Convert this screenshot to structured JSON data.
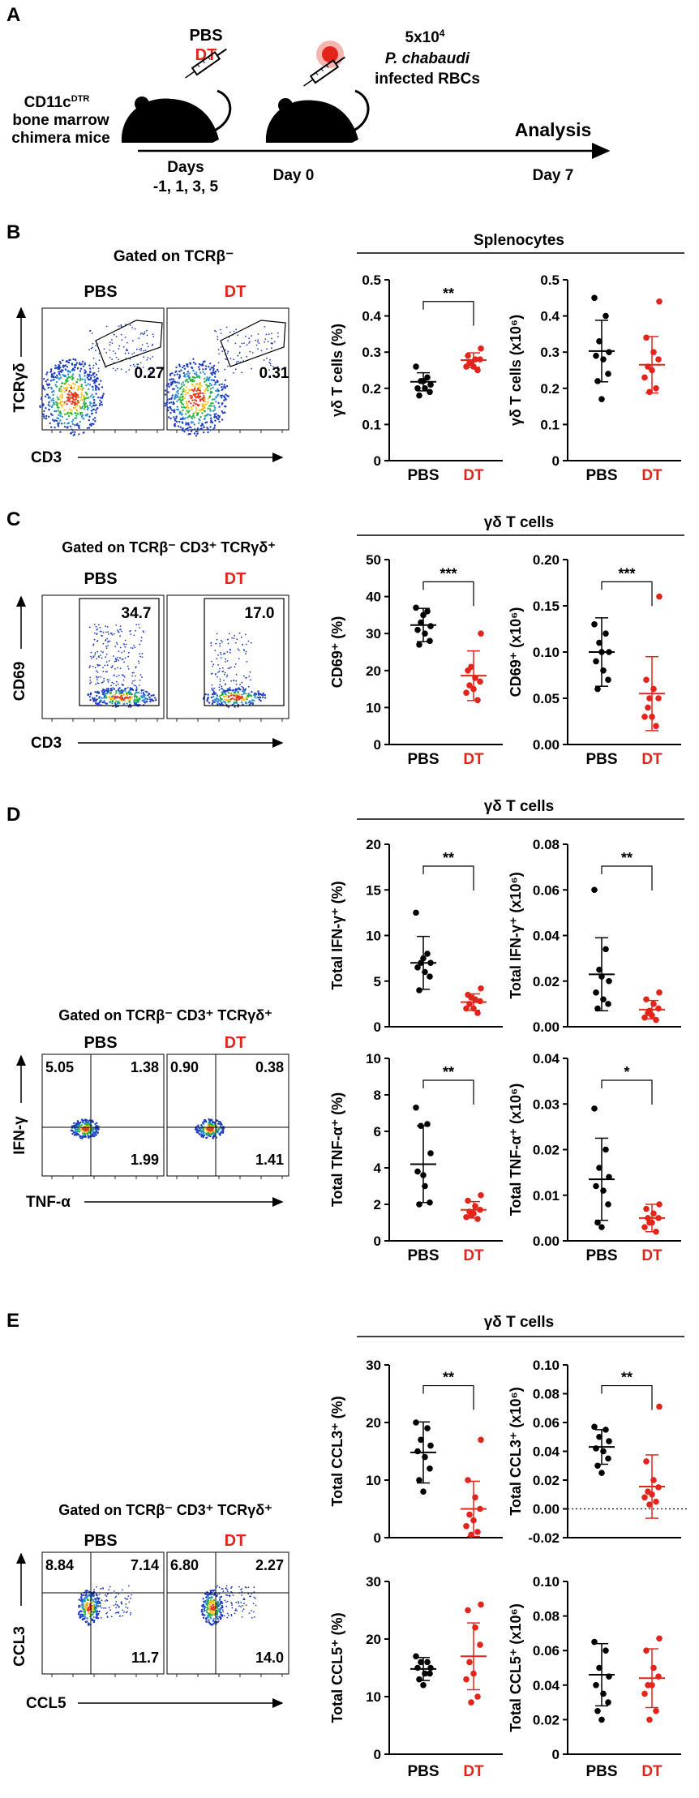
{
  "colors": {
    "pbs": "#000000",
    "dt": "#e3241b",
    "axis": "#000000"
  },
  "panel_a": {
    "label": "A",
    "mouse_label": [
      "CD11c",
      "DTR",
      "bone marrow",
      "chimera mice"
    ],
    "treatment": {
      "pbs": "PBS",
      "dt": "DT"
    },
    "infection": {
      "dose": "5x10",
      "dose_exp": "4",
      "species": "P. chabaudi",
      "cells": "infected RBCs"
    },
    "days_label": [
      "Days",
      "-1, 1, 3, 5"
    ],
    "day0": "Day 0",
    "analysis": "Analysis",
    "day7": "Day 7"
  },
  "panel_b": {
    "label": "B",
    "gate": "Gated on TCRβ⁻",
    "ylab": "TCRγδ",
    "xlab": "CD3",
    "pbs": "PBS",
    "dt": "DT",
    "pct": [
      "0.27",
      "0.31"
    ],
    "group": "Splenocytes"
  },
  "panel_c": {
    "label": "C",
    "gate": "Gated on TCRβ⁻ CD3⁺ TCRγδ⁺",
    "ylab": "CD69",
    "xlab": "CD3",
    "pbs": "PBS",
    "dt": "DT",
    "pct": [
      "34.7",
      "17.0"
    ],
    "group": "γδ T cells"
  },
  "panel_d": {
    "label": "D",
    "gate": "Gated on TCRβ⁻ CD3⁺ TCRγδ⁺",
    "ylab": "IFN-γ",
    "xlab": "TNF-α",
    "pbs": "PBS",
    "dt": "DT",
    "quads_pbs": [
      "5.05",
      "1.38",
      "1.99"
    ],
    "quads_dt": [
      "0.90",
      "0.38",
      "1.41"
    ],
    "group": "γδ T cells"
  },
  "panel_e": {
    "label": "E",
    "gate": "Gated on TCRβ⁻ CD3⁺ TCRγδ⁺",
    "ylab": "CCL3",
    "xlab": "CCL5",
    "pbs": "PBS",
    "dt": "DT",
    "quads_pbs": [
      "8.84",
      "7.14",
      "11.7"
    ],
    "quads_dt": [
      "6.80",
      "2.27",
      "14.0"
    ],
    "group": "γδ T cells"
  },
  "chart_data": [
    {
      "id": "b1",
      "type": "scatter",
      "ylabel": "γδ T cells (%)",
      "ylim": [
        0,
        0.5
      ],
      "ticks": [
        "0",
        "0.1",
        "0.2",
        "0.3",
        "0.4",
        "0.5"
      ],
      "categories": [
        "PBS",
        "DT"
      ],
      "sig": "**",
      "pbs": [
        0.26,
        0.23,
        0.22,
        0.21,
        0.2,
        0.2,
        0.19,
        0.18,
        0.22
      ],
      "dt": [
        0.31,
        0.29,
        0.28,
        0.28,
        0.27,
        0.26,
        0.26,
        0.25,
        0.27
      ],
      "summary_pbs": {
        "mean": 0.218,
        "sd": 0.025
      },
      "summary_dt": {
        "mean": 0.278,
        "sd": 0.02
      }
    },
    {
      "id": "b2",
      "type": "scatter",
      "ylabel": "γδ T cells (x10⁶)",
      "ylim": [
        0,
        0.5
      ],
      "ticks": [
        "0",
        "0.1",
        "0.2",
        "0.3",
        "0.4",
        "0.5"
      ],
      "categories": [
        "PBS",
        "DT"
      ],
      "sig": "",
      "pbs": [
        0.45,
        0.4,
        0.33,
        0.3,
        0.29,
        0.28,
        0.24,
        0.22,
        0.17
      ],
      "dt": [
        0.44,
        0.34,
        0.3,
        0.28,
        0.26,
        0.25,
        0.23,
        0.2,
        0.19
      ],
      "summary_pbs": {
        "mean": 0.303,
        "sd": 0.085
      },
      "summary_dt": {
        "mean": 0.265,
        "sd": 0.078
      }
    },
    {
      "id": "c1",
      "type": "scatter",
      "ylabel": "CD69⁺ (%)",
      "ylim": [
        0,
        50
      ],
      "ticks": [
        "0",
        "10",
        "20",
        "30",
        "40",
        "50"
      ],
      "categories": [
        "PBS",
        "DT"
      ],
      "sig": "***",
      "pbs": [
        37,
        36,
        33,
        32,
        31,
        30,
        28,
        27,
        35
      ],
      "dt": [
        30,
        20,
        18,
        17,
        16,
        15,
        14,
        12,
        21
      ],
      "summary_pbs": {
        "mean": 32.3,
        "sd": 4.5
      },
      "summary_dt": {
        "mean": 18.6,
        "sd": 6.7
      }
    },
    {
      "id": "c2",
      "type": "scatter",
      "ylabel": "CD69⁺ (x10⁶)",
      "ylim": [
        0,
        0.2
      ],
      "ticks": [
        "0.00",
        "0.05",
        "0.10",
        "0.15",
        "0.20"
      ],
      "categories": [
        "PBS",
        "DT"
      ],
      "sig": "***",
      "pbs": [
        0.13,
        0.12,
        0.11,
        0.1,
        0.09,
        0.08,
        0.07,
        0.06,
        0.1
      ],
      "dt": [
        0.16,
        0.07,
        0.06,
        0.05,
        0.04,
        0.03,
        0.03,
        0.02,
        0.05
      ],
      "summary_pbs": {
        "mean": 0.1,
        "sd": 0.037
      },
      "summary_dt": {
        "mean": 0.055,
        "sd": 0.04
      }
    },
    {
      "id": "d1",
      "type": "scatter",
      "ylabel": "Total IFN-γ⁺ (%)",
      "ylim": [
        0,
        20
      ],
      "ticks": [
        "0",
        "5",
        "10",
        "15",
        "20"
      ],
      "categories": [
        "PBS",
        "DT"
      ],
      "sig": "**",
      "pbs": [
        12.5,
        8,
        7,
        7,
        6.5,
        6,
        5.5,
        4,
        7.5
      ],
      "dt": [
        4.2,
        3.5,
        3,
        2.8,
        2.5,
        2,
        2,
        1.5,
        3.2
      ],
      "summary_pbs": {
        "mean": 7.0,
        "sd": 2.9
      },
      "summary_dt": {
        "mean": 2.7,
        "sd": 0.9
      }
    },
    {
      "id": "d2",
      "type": "scatter",
      "ylabel": "Total IFN-γ⁺ (x10⁶)",
      "ylim": [
        0,
        0.08
      ],
      "ticks": [
        "0.00",
        "0.02",
        "0.04",
        "0.06",
        "0.08"
      ],
      "categories": [
        "PBS",
        "DT"
      ],
      "sig": "**",
      "pbs": [
        0.06,
        0.034,
        0.025,
        0.02,
        0.015,
        0.012,
        0.01,
        0.008,
        0.022
      ],
      "dt": [
        0.015,
        0.012,
        0.01,
        0.008,
        0.006,
        0.005,
        0.004,
        0.003,
        0.007
      ],
      "summary_pbs": {
        "mean": 0.023,
        "sd": 0.016
      },
      "summary_dt": {
        "mean": 0.0075,
        "sd": 0.004
      }
    },
    {
      "id": "d3",
      "type": "scatter",
      "ylabel": "Total TNF-α⁺ (%)",
      "ylim": [
        0,
        10
      ],
      "ticks": [
        "0",
        "2",
        "4",
        "6",
        "8",
        "10"
      ],
      "categories": [
        "PBS",
        "DT"
      ],
      "sig": "**",
      "pbs": [
        7.3,
        6.4,
        6.3,
        4.8,
        3.8,
        3,
        2.1,
        2,
        3.6
      ],
      "dt": [
        2.5,
        2.2,
        1.9,
        1.7,
        1.6,
        1.5,
        1.3,
        1.2,
        1.4
      ],
      "summary_pbs": {
        "mean": 4.2,
        "sd": 2.1
      },
      "summary_dt": {
        "mean": 1.7,
        "sd": 0.45
      }
    },
    {
      "id": "d4",
      "type": "scatter",
      "ylabel": "Total TNF-α⁺ (x10⁶)",
      "ylim": [
        0,
        0.04
      ],
      "ticks": [
        "0.00",
        "0.01",
        "0.02",
        "0.03",
        "0.04"
      ],
      "categories": [
        "PBS",
        "DT"
      ],
      "sig": "*",
      "pbs": [
        0.029,
        0.02,
        0.016,
        0.014,
        0.012,
        0.011,
        0.008,
        0.004,
        0.003
      ],
      "dt": [
        0.008,
        0.007,
        0.006,
        0.005,
        0.005,
        0.004,
        0.003,
        0.002,
        0.004
      ],
      "summary_pbs": {
        "mean": 0.0135,
        "sd": 0.009
      },
      "summary_dt": {
        "mean": 0.005,
        "sd": 0.003
      }
    },
    {
      "id": "e1",
      "type": "scatter",
      "ylabel": "Total CCL3⁺ (%)",
      "ylim": [
        0,
        30
      ],
      "ticks": [
        "0",
        "10",
        "20",
        "30"
      ],
      "categories": [
        "PBS",
        "DT"
      ],
      "sig": "**",
      "pbs": [
        20,
        19,
        17,
        16,
        15,
        14,
        12,
        10,
        8
      ],
      "dt": [
        17,
        10,
        7,
        5,
        4,
        3,
        2,
        1,
        0.5
      ],
      "summary_pbs": {
        "mean": 14.8,
        "sd": 5.3
      },
      "summary_dt": {
        "mean": 5.0,
        "sd": 4.8
      }
    },
    {
      "id": "e2",
      "type": "scatter",
      "ylabel": "Total CCL3⁺ (x10⁶)",
      "ylim": [
        -0.02,
        0.1
      ],
      "ticks": [
        "-0.02",
        "0.00",
        "0.02",
        "0.04",
        "0.06",
        "0.08",
        "0.10"
      ],
      "categories": [
        "PBS",
        "DT"
      ],
      "sig": "**",
      "zero_line": true,
      "pbs": [
        0.057,
        0.055,
        0.05,
        0.047,
        0.042,
        0.04,
        0.035,
        0.03,
        0.025
      ],
      "dt": [
        0.071,
        0.033,
        0.02,
        0.015,
        0.012,
        0.01,
        0.008,
        0.005,
        0.003
      ],
      "summary_pbs": {
        "mean": 0.043,
        "sd": 0.012
      },
      "summary_dt": {
        "mean": 0.0155,
        "sd": 0.022
      }
    },
    {
      "id": "e3",
      "type": "scatter",
      "ylabel": "Total CCL5⁺ (%)",
      "ylim": [
        0,
        30
      ],
      "ticks": [
        "0",
        "10",
        "20",
        "30"
      ],
      "categories": [
        "PBS",
        "DT"
      ],
      "sig": "",
      "pbs": [
        17,
        16,
        16,
        15,
        15,
        14,
        14,
        13,
        12
      ],
      "dt": [
        26,
        25,
        22,
        19,
        16,
        14,
        13,
        10,
        9
      ],
      "summary_pbs": {
        "mean": 14.8,
        "sd": 2.0
      },
      "summary_dt": {
        "mean": 17.0,
        "sd": 5.8
      }
    },
    {
      "id": "e4",
      "type": "scatter",
      "ylabel": "Total CCL5⁺ (x10⁶)",
      "ylim": [
        0,
        0.1
      ],
      "ticks": [
        "0",
        "0.02",
        "0.04",
        "0.06",
        "0.08",
        "0.10"
      ],
      "categories": [
        "PBS",
        "DT"
      ],
      "sig": "",
      "pbs": [
        0.065,
        0.06,
        0.05,
        0.045,
        0.04,
        0.035,
        0.03,
        0.025,
        0.02
      ],
      "dt": [
        0.067,
        0.06,
        0.05,
        0.045,
        0.04,
        0.04,
        0.035,
        0.025,
        0.02
      ],
      "summary_pbs": {
        "mean": 0.046,
        "sd": 0.018
      },
      "summary_dt": {
        "mean": 0.044,
        "sd": 0.017
      }
    }
  ]
}
